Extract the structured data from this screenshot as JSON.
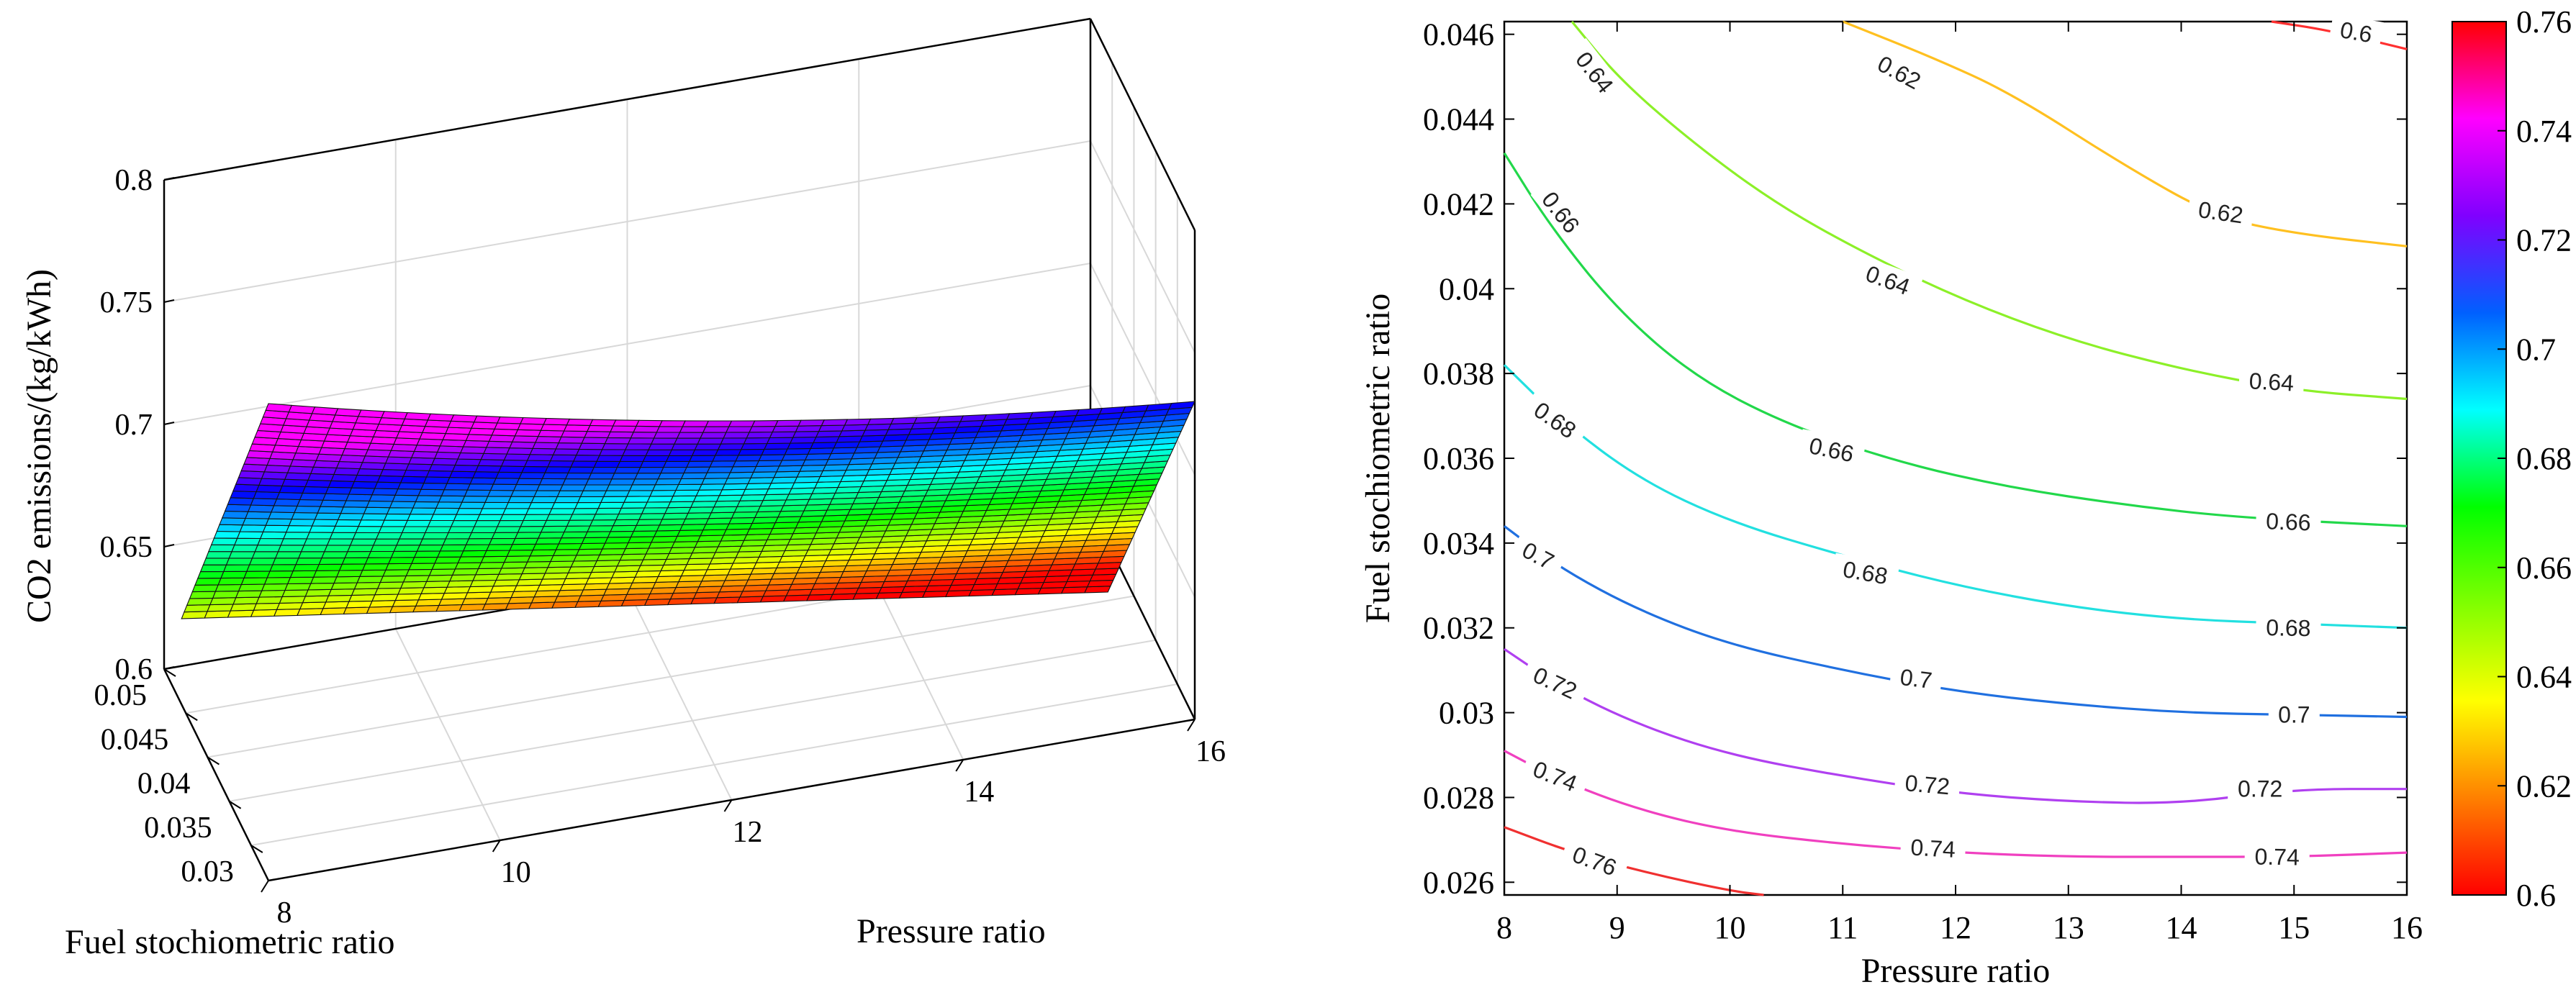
{
  "chart_data": [
    {
      "type": "surface3d",
      "title": "",
      "xlabel": "Pressure ratio",
      "ylabel": "Fuel stochiometric ratio",
      "zlabel": "CO2 emissions/(kg/kWh)",
      "x_range": [
        8,
        16
      ],
      "y_range": [
        0.026,
        0.05
      ],
      "zlim": [
        0.6,
        0.8
      ],
      "x_ticks": [
        "8",
        "10",
        "12",
        "14",
        "16"
      ],
      "x_tick_values": [
        8,
        10,
        12,
        14,
        16
      ],
      "y_ticks": [
        "0.03",
        "0.035",
        "0.04",
        "0.045",
        "0.05"
      ],
      "y_tick_values": [
        0.03,
        0.035,
        0.04,
        0.045,
        0.05
      ],
      "z_ticks": [
        "0.6",
        "0.65",
        "0.7",
        "0.75",
        "0.8"
      ],
      "z_tick_values": [
        0.6,
        0.65,
        0.7,
        0.75,
        0.8
      ],
      "corner_values": {
        "p8_f0.026": 0.765,
        "p8_f0.046": 0.635,
        "p16_f0.026": 0.73,
        "p16_f0.046": 0.59
      },
      "colormap": "hsv-reversed",
      "grid": true
    },
    {
      "type": "contour",
      "title": "",
      "xlabel": "Pressure ratio",
      "ylabel": "Fuel stochiometric ratio",
      "xlim": [
        8,
        16
      ],
      "ylim": [
        0.0257,
        0.0463
      ],
      "x_ticks": [
        "8",
        "9",
        "10",
        "11",
        "12",
        "13",
        "14",
        "15",
        "16"
      ],
      "x_tick_values": [
        8,
        9,
        10,
        11,
        12,
        13,
        14,
        15,
        16
      ],
      "y_ticks": [
        "0.026",
        "0.028",
        "0.03",
        "0.032",
        "0.034",
        "0.036",
        "0.038",
        "0.04",
        "0.042",
        "0.044",
        "0.046"
      ],
      "y_tick_values": [
        0.026,
        0.028,
        0.03,
        0.032,
        0.034,
        0.036,
        0.038,
        0.04,
        0.042,
        0.044,
        0.046
      ],
      "levels": [
        {
          "value": 0.6,
          "label": "0.6",
          "color": "#ff3030",
          "points": [
            [
              14.8,
              0.0463
            ],
            [
              15.3,
              0.0461
            ],
            [
              16,
              0.04565
            ]
          ]
        },
        {
          "value": 0.62,
          "label": "0.62",
          "color": "#ffc020",
          "points": [
            [
              11.0,
              0.0463
            ],
            [
              11.8,
              0.04545
            ],
            [
              12.5,
              0.0446
            ],
            [
              13.5,
              0.0429
            ],
            [
              14.3,
              0.0417
            ],
            [
              15.0,
              0.0413
            ],
            [
              16,
              0.041
            ]
          ]
        },
        {
          "value": 0.64,
          "label": "0.64",
          "color": "#8cf028",
          "points": [
            [
              8.6,
              0.0463
            ],
            [
              9.0,
              0.045
            ],
            [
              9.6,
              0.0436
            ],
            [
              10.3,
              0.0422
            ],
            [
              11.0,
              0.0411
            ],
            [
              12.0,
              0.0398
            ],
            [
              13.0,
              0.0388
            ],
            [
              14.0,
              0.0381
            ],
            [
              15.0,
              0.0376
            ],
            [
              16,
              0.0374
            ]
          ]
        },
        {
          "value": 0.66,
          "label": "0.66",
          "color": "#22d84a",
          "points": [
            [
              8.0,
              0.0432
            ],
            [
              8.4,
              0.0415
            ],
            [
              9.0,
              0.0395
            ],
            [
              9.7,
              0.0379
            ],
            [
              10.5,
              0.0368
            ],
            [
              11.5,
              0.0359
            ],
            [
              12.5,
              0.0353
            ],
            [
              13.5,
              0.0349
            ],
            [
              14.5,
              0.0346
            ],
            [
              16,
              0.0344
            ]
          ]
        },
        {
          "value": 0.68,
          "label": "0.68",
          "color": "#22e0e0",
          "points": [
            [
              8.0,
              0.0382
            ],
            [
              8.5,
              0.0369
            ],
            [
              9.2,
              0.0355
            ],
            [
              10.0,
              0.0345
            ],
            [
              11.0,
              0.0337
            ],
            [
              12.0,
              0.033
            ],
            [
              13.0,
              0.0325
            ],
            [
              14.0,
              0.0322
            ],
            [
              15.0,
              0.0321
            ],
            [
              16,
              0.032
            ]
          ]
        },
        {
          "value": 0.7,
          "label": "0.7",
          "color": "#2070e0",
          "points": [
            [
              8.0,
              0.0344
            ],
            [
              8.5,
              0.0334
            ],
            [
              9.2,
              0.0324
            ],
            [
              10.0,
              0.0316
            ],
            [
              11.0,
              0.031
            ],
            [
              12.0,
              0.0305
            ],
            [
              13.0,
              0.0302
            ],
            [
              14.0,
              0.03
            ],
            [
              15.0,
              0.02995
            ],
            [
              16,
              0.0299
            ]
          ]
        },
        {
          "value": 0.72,
          "label": "0.72",
          "color": "#b040f0",
          "points": [
            [
              8.0,
              0.0315
            ],
            [
              8.5,
              0.0306
            ],
            [
              9.2,
              0.0297
            ],
            [
              10.0,
              0.029
            ],
            [
              11.0,
              0.0285
            ],
            [
              12.0,
              0.0281
            ],
            [
              13.0,
              0.0279
            ],
            [
              14.0,
              0.02785
            ],
            [
              15.0,
              0.0282
            ],
            [
              16,
              0.0282
            ]
          ]
        },
        {
          "value": 0.74,
          "label": "0.74",
          "color": "#f040c0",
          "points": [
            [
              8.0,
              0.0291
            ],
            [
              8.5,
              0.0284
            ],
            [
              9.2,
              0.0277
            ],
            [
              10.0,
              0.0272
            ],
            [
              11.0,
              0.0269
            ],
            [
              12.0,
              0.0267
            ],
            [
              13.0,
              0.0266
            ],
            [
              14.0,
              0.0266
            ],
            [
              15.0,
              0.0266
            ],
            [
              16,
              0.0267
            ]
          ]
        },
        {
          "value": 0.76,
          "label": "0.76",
          "color": "#f03030",
          "points": [
            [
              8.0,
              0.0273
            ],
            [
              8.6,
              0.0267
            ],
            [
              9.3,
              0.0262
            ],
            [
              10.0,
              0.0258
            ],
            [
              10.3,
              0.0257
            ]
          ]
        }
      ],
      "contour_labels": [
        {
          "label": "0.6",
          "x": 15.55,
          "y": 0.04605,
          "angle": 10
        },
        {
          "label": "0.62",
          "x": 11.5,
          "y": 0.0451,
          "angle": 28
        },
        {
          "label": "0.62",
          "x": 14.35,
          "y": 0.0418,
          "angle": 8
        },
        {
          "label": "0.64",
          "x": 8.8,
          "y": 0.0451,
          "angle": 52
        },
        {
          "label": "0.64",
          "x": 11.4,
          "y": 0.0402,
          "angle": 20
        },
        {
          "label": "0.64",
          "x": 14.8,
          "y": 0.0378,
          "angle": 3
        },
        {
          "label": "0.66",
          "x": 8.5,
          "y": 0.0418,
          "angle": 52
        },
        {
          "label": "0.66",
          "x": 10.9,
          "y": 0.0362,
          "angle": 12
        },
        {
          "label": "0.66",
          "x": 14.95,
          "y": 0.0345,
          "angle": 2
        },
        {
          "label": "0.68",
          "x": 8.45,
          "y": 0.0369,
          "angle": 35
        },
        {
          "label": "0.68",
          "x": 11.2,
          "y": 0.0333,
          "angle": 10
        },
        {
          "label": "0.68",
          "x": 14.95,
          "y": 0.032,
          "angle": 1
        },
        {
          "label": "0.7",
          "x": 8.3,
          "y": 0.0337,
          "angle": 28
        },
        {
          "label": "0.7",
          "x": 11.65,
          "y": 0.0308,
          "angle": 7
        },
        {
          "label": "0.7",
          "x": 15.0,
          "y": 0.02995,
          "angle": 0
        },
        {
          "label": "0.72",
          "x": 8.45,
          "y": 0.0307,
          "angle": 25
        },
        {
          "label": "0.72",
          "x": 11.75,
          "y": 0.0283,
          "angle": 5
        },
        {
          "label": "0.72",
          "x": 14.7,
          "y": 0.0282,
          "angle": 0
        },
        {
          "label": "0.74",
          "x": 8.45,
          "y": 0.0285,
          "angle": 22
        },
        {
          "label": "0.74",
          "x": 11.8,
          "y": 0.0268,
          "angle": 3
        },
        {
          "label": "0.74",
          "x": 14.85,
          "y": 0.0266,
          "angle": 1
        },
        {
          "label": "0.76",
          "x": 8.8,
          "y": 0.0265,
          "angle": 20
        }
      ],
      "colorbar": {
        "min": 0.6,
        "max": 0.76,
        "ticks": [
          "0.6",
          "0.62",
          "0.64",
          "0.66",
          "0.68",
          "0.7",
          "0.72",
          "0.74",
          "0.76"
        ],
        "tick_values": [
          0.6,
          0.62,
          0.64,
          0.66,
          0.68,
          0.7,
          0.72,
          0.74,
          0.76
        ],
        "colors": [
          "#ff0000",
          "#ff8000",
          "#ffff00",
          "#80ff00",
          "#00ff00",
          "#00ffff",
          "#0060ff",
          "#8000ff",
          "#ff00ff",
          "#ff0000"
        ]
      }
    }
  ]
}
